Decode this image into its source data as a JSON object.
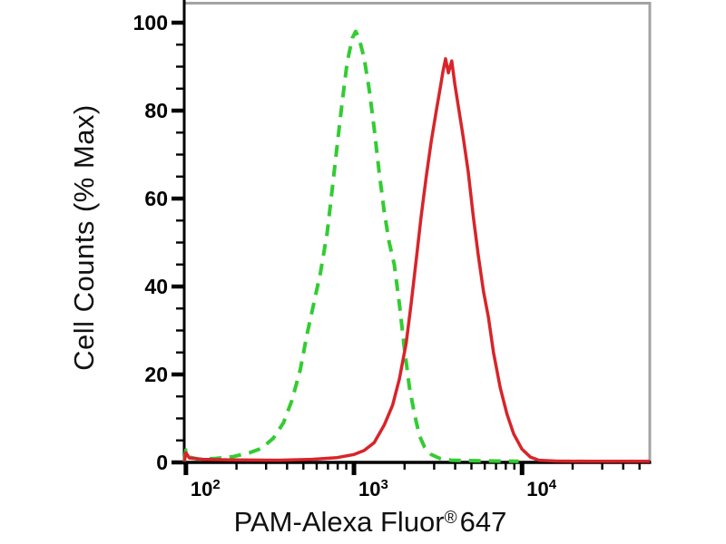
{
  "chart_data": {
    "type": "line",
    "subtype": "flow-cytometry-histogram",
    "title": "",
    "xlabel": "PAM-Alexa Fluor® 647",
    "xlabel_parts": {
      "main": "PAM-Alexa Fluor",
      "sup": "®",
      "num": "647"
    },
    "ylabel": "Cell Counts (% Max)",
    "x_scale": "log10",
    "x_range_log": [
      1.99,
      4.76
    ],
    "ylim": [
      0,
      100
    ],
    "grid": false,
    "legend": "none",
    "y_ticks": [
      {
        "value": 0,
        "label": "0"
      },
      {
        "value": 20,
        "label": "20"
      },
      {
        "value": 40,
        "label": "40"
      },
      {
        "value": 60,
        "label": "60"
      },
      {
        "value": 80,
        "label": "80"
      },
      {
        "value": 100,
        "label": "100"
      }
    ],
    "y_minor_step": 5,
    "x_ticks": [
      {
        "log": 2,
        "base": "10",
        "exp": "2"
      },
      {
        "log": 3,
        "base": "10",
        "exp": "3"
      },
      {
        "log": 4,
        "base": "10",
        "exp": "4"
      }
    ],
    "x_minor_decades": [
      2,
      3,
      4
    ],
    "colors": {
      "green_series": "#33cc33",
      "red_series": "#d8242a",
      "axis": "#000000",
      "frame": "#a3a3a3",
      "background": "#ffffff"
    },
    "series": [
      {
        "name": "green_dashed_histogram",
        "style": "dashed",
        "color_key": "green_series",
        "peak": {
          "x_approx": 1000,
          "pct": 98
        },
        "points_log_pct": [
          [
            1.99,
            0.2
          ],
          [
            2.0,
            2.8
          ],
          [
            2.02,
            1.2
          ],
          [
            2.08,
            0.7
          ],
          [
            2.18,
            0.9
          ],
          [
            2.28,
            1.3
          ],
          [
            2.38,
            2.2
          ],
          [
            2.45,
            3.2
          ],
          [
            2.52,
            5.5
          ],
          [
            2.58,
            9
          ],
          [
            2.63,
            14
          ],
          [
            2.68,
            21
          ],
          [
            2.72,
            29
          ],
          [
            2.76,
            36
          ],
          [
            2.8,
            43
          ],
          [
            2.84,
            52
          ],
          [
            2.87,
            62
          ],
          [
            2.9,
            72
          ],
          [
            2.93,
            82
          ],
          [
            2.96,
            91
          ],
          [
            2.99,
            96.5
          ],
          [
            3.01,
            98
          ],
          [
            3.03,
            96.5
          ],
          [
            3.06,
            92
          ],
          [
            3.09,
            85
          ],
          [
            3.12,
            76
          ],
          [
            3.15,
            66
          ],
          [
            3.18,
            57
          ],
          [
            3.21,
            50
          ],
          [
            3.24,
            45
          ],
          [
            3.27,
            36
          ],
          [
            3.3,
            26
          ],
          [
            3.33,
            17
          ],
          [
            3.36,
            11
          ],
          [
            3.39,
            6
          ],
          [
            3.42,
            3.5
          ],
          [
            3.46,
            1.8
          ],
          [
            3.51,
            0.9
          ],
          [
            3.58,
            0.5
          ],
          [
            3.7,
            0.4
          ],
          [
            3.85,
            0.3
          ],
          [
            3.98,
            0.25
          ]
        ]
      },
      {
        "name": "red_solid_histogram",
        "style": "solid",
        "color_key": "red_series",
        "peak": {
          "x_approx": 3500,
          "pct": 92,
          "shape": "double-peak"
        },
        "points_log_pct": [
          [
            1.99,
            0.2
          ],
          [
            2.0,
            2.2
          ],
          [
            2.02,
            1.0
          ],
          [
            2.1,
            0.7
          ],
          [
            2.3,
            0.55
          ],
          [
            2.55,
            0.5
          ],
          [
            2.75,
            0.7
          ],
          [
            2.9,
            1.1
          ],
          [
            3.0,
            1.8
          ],
          [
            3.06,
            2.7
          ],
          [
            3.12,
            4.5
          ],
          [
            3.18,
            8.5
          ],
          [
            3.23,
            13
          ],
          [
            3.27,
            19
          ],
          [
            3.31,
            27
          ],
          [
            3.34,
            36
          ],
          [
            3.37,
            46
          ],
          [
            3.4,
            56
          ],
          [
            3.43,
            65
          ],
          [
            3.46,
            73
          ],
          [
            3.49,
            80
          ],
          [
            3.515,
            85.5
          ],
          [
            3.53,
            89
          ],
          [
            3.545,
            91.8
          ],
          [
            3.562,
            88.6
          ],
          [
            3.582,
            91.3
          ],
          [
            3.6,
            86
          ],
          [
            3.625,
            80
          ],
          [
            3.65,
            74
          ],
          [
            3.68,
            66
          ],
          [
            3.71,
            56
          ],
          [
            3.74,
            47
          ],
          [
            3.77,
            39
          ],
          [
            3.8,
            33
          ],
          [
            3.83,
            25
          ],
          [
            3.87,
            17
          ],
          [
            3.91,
            11
          ],
          [
            3.95,
            6.5
          ],
          [
            4.0,
            3
          ],
          [
            4.05,
            1.2
          ],
          [
            4.1,
            0.5
          ],
          [
            4.2,
            0.3
          ],
          [
            4.4,
            0.25
          ],
          [
            4.6,
            0.25
          ],
          [
            4.76,
            0.25
          ]
        ]
      }
    ]
  }
}
